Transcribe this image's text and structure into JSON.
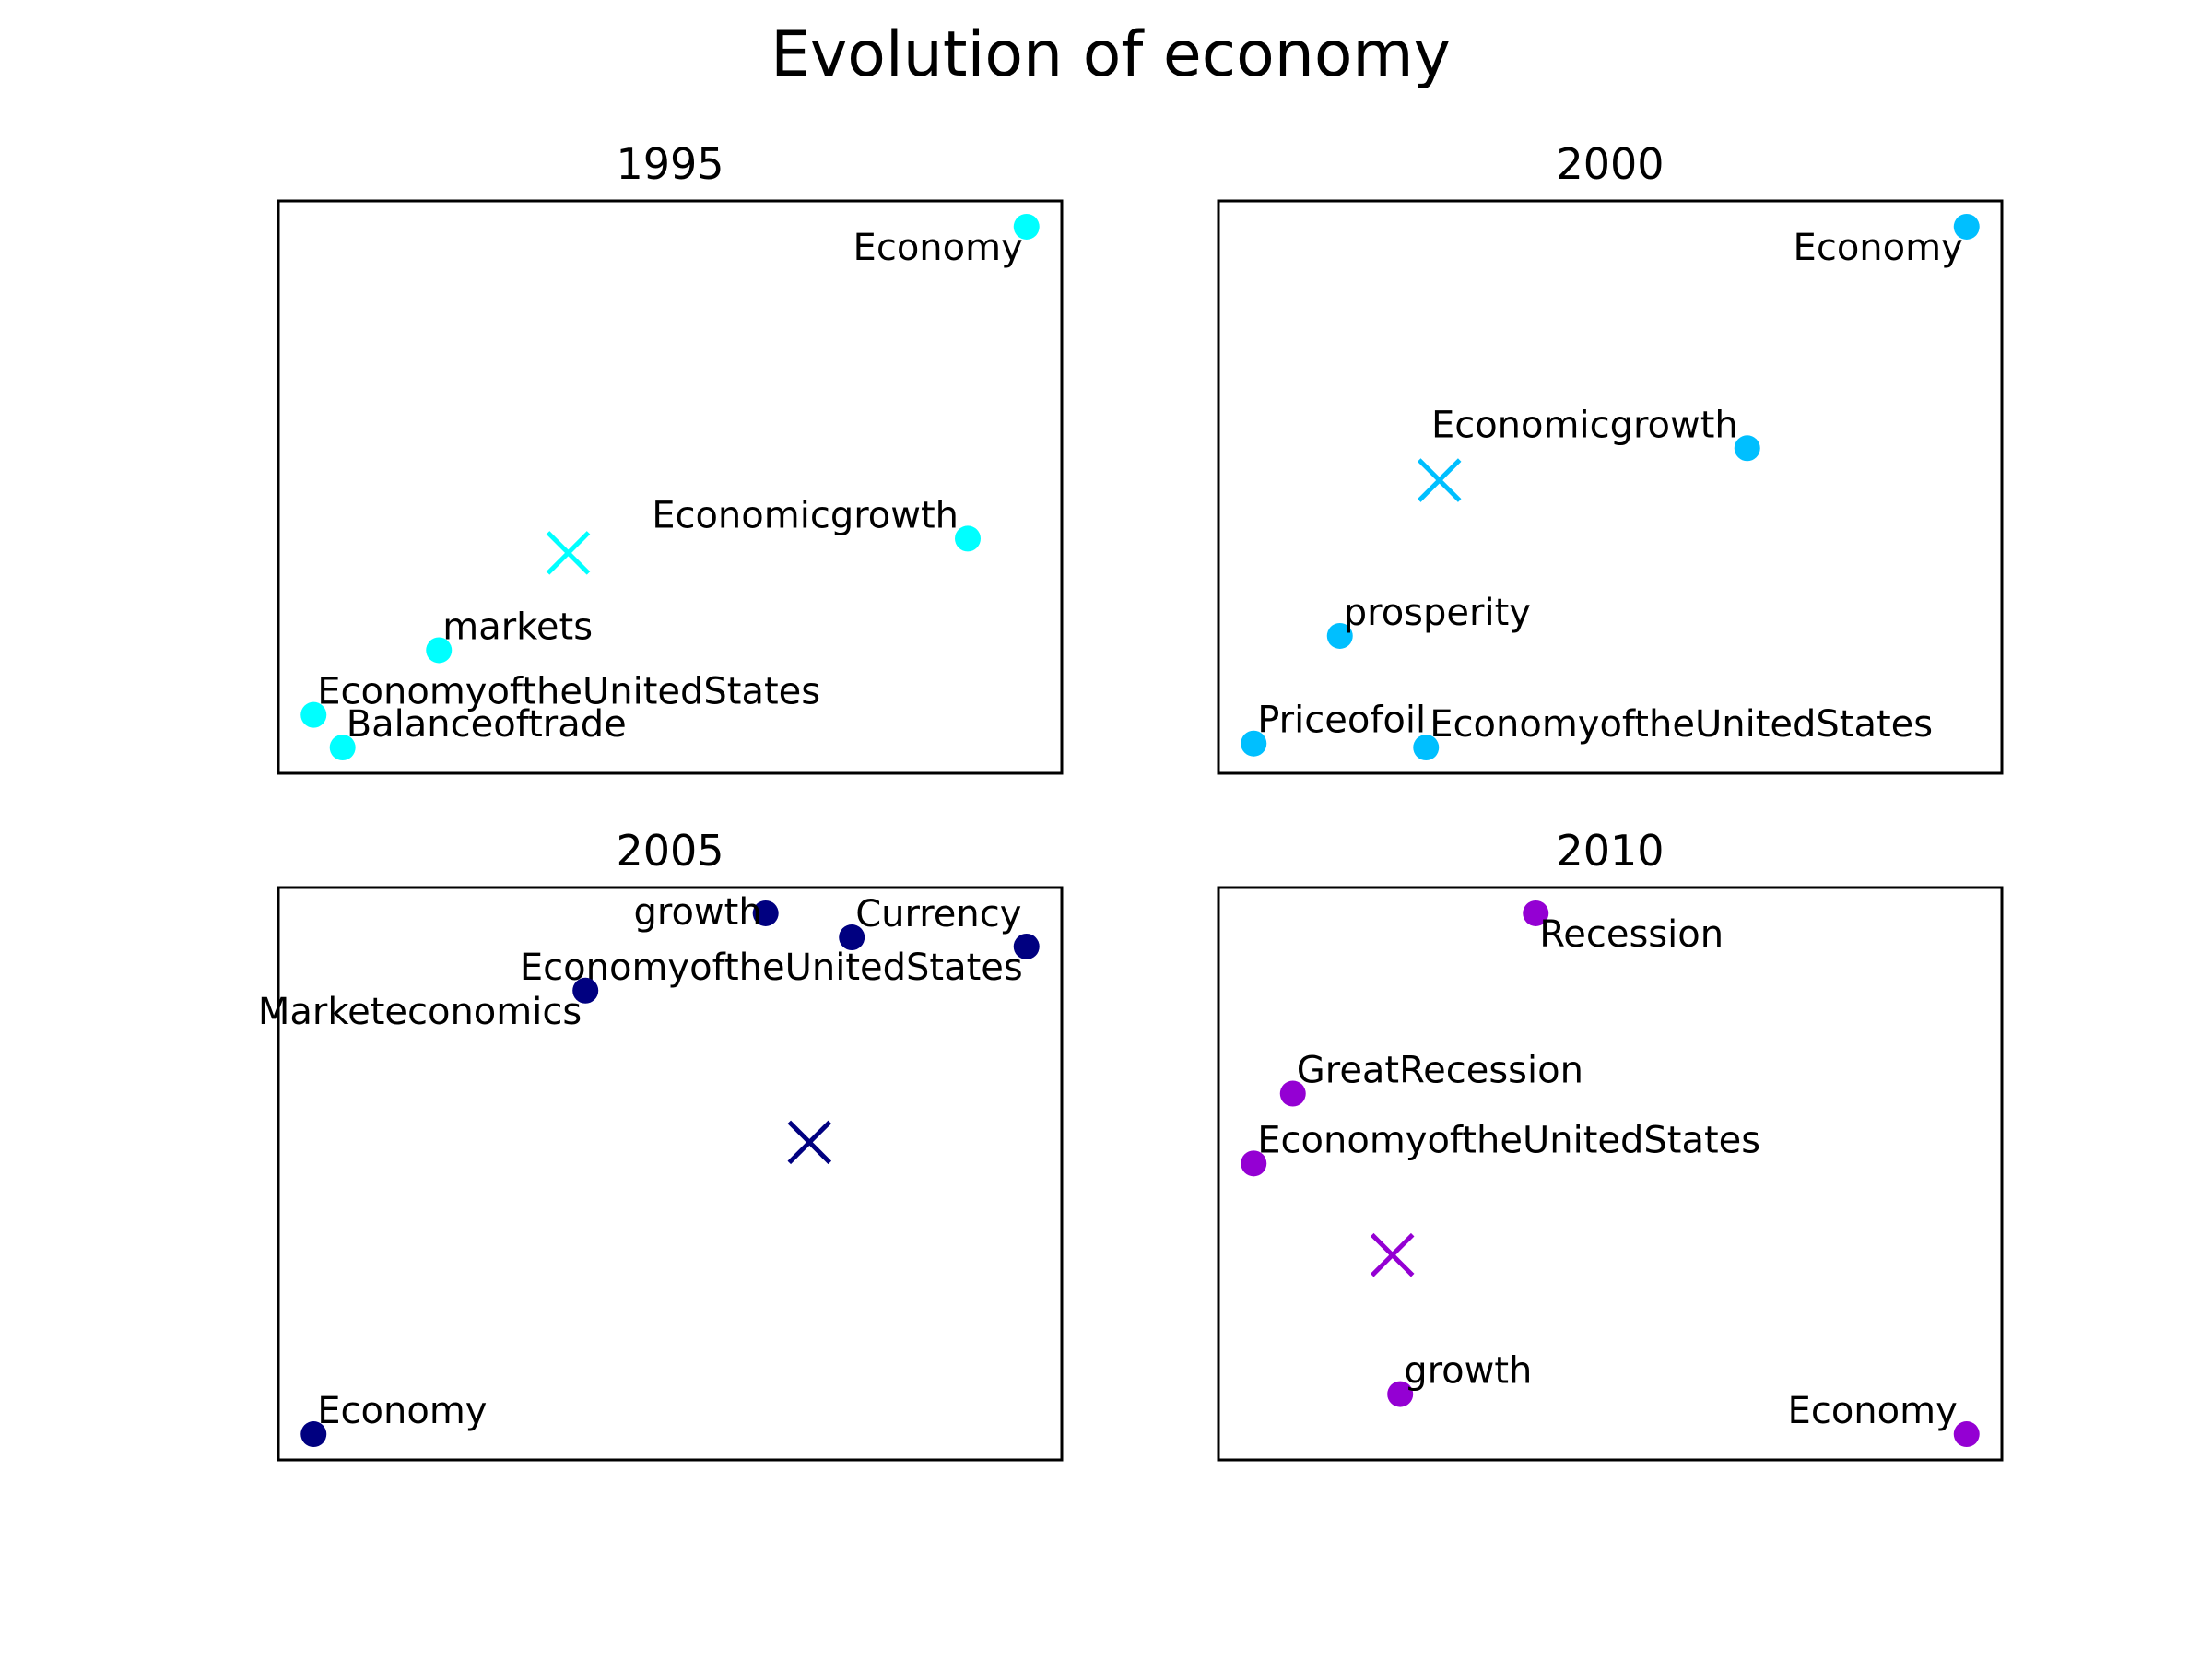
{
  "figure": {
    "title": "Evolution of economy"
  },
  "chart_data": [
    {
      "type": "scatter",
      "title": "1995",
      "color": "#00ffff",
      "axes": {
        "ticks": false,
        "grid": false
      },
      "xlim": [
        0,
        1
      ],
      "ylim": [
        0,
        1
      ],
      "points": [
        {
          "label": "Economy",
          "x": 0.955,
          "y": 0.955,
          "label_pos": "below-left"
        },
        {
          "label": "Economicgrowth",
          "x": 0.88,
          "y": 0.41,
          "label_pos": "above-left"
        },
        {
          "label": "markets",
          "x": 0.205,
          "y": 0.215,
          "label_pos": "above-right"
        },
        {
          "label": "EconomyoftheUnitedStates",
          "x": 0.045,
          "y": 0.102,
          "label_pos": "above-right"
        },
        {
          "label": "Balanceoftrade",
          "x": 0.082,
          "y": 0.045,
          "label_pos": "above-right"
        }
      ],
      "centroid": {
        "x": 0.37,
        "y": 0.385
      }
    },
    {
      "type": "scatter",
      "title": "2000",
      "color": "#00bfff",
      "axes": {
        "ticks": false,
        "grid": false
      },
      "xlim": [
        0,
        1
      ],
      "ylim": [
        0,
        1
      ],
      "points": [
        {
          "label": "Economy",
          "x": 0.955,
          "y": 0.955,
          "label_pos": "below-left"
        },
        {
          "label": "Economicgrowth",
          "x": 0.675,
          "y": 0.568,
          "label_pos": "above-left"
        },
        {
          "label": "prosperity",
          "x": 0.155,
          "y": 0.24,
          "label_pos": "above-right"
        },
        {
          "label": "EconomyoftheUnitedStates",
          "x": 0.265,
          "y": 0.045,
          "label_pos": "above-right"
        },
        {
          "label": "Priceofoil",
          "x": 0.045,
          "y": 0.052,
          "label_pos": "above-right"
        }
      ],
      "centroid": {
        "x": 0.282,
        "y": 0.512
      }
    },
    {
      "type": "scatter",
      "title": "2005",
      "color": "#000080",
      "axes": {
        "ticks": false,
        "grid": false
      },
      "xlim": [
        0,
        1
      ],
      "ylim": [
        0,
        1
      ],
      "points": [
        {
          "label": "growth",
          "x": 0.622,
          "y": 0.955,
          "label_pos": "left"
        },
        {
          "label": "Currency",
          "x": 0.732,
          "y": 0.913,
          "label_pos": "above-right"
        },
        {
          "label": "EconomyoftheUnitedStates",
          "x": 0.955,
          "y": 0.897,
          "label_pos": "below-left"
        },
        {
          "label": "Marketeconomics",
          "x": 0.392,
          "y": 0.82,
          "label_pos": "below-left"
        },
        {
          "label": "Economy",
          "x": 0.045,
          "y": 0.045,
          "label_pos": "above-right"
        }
      ],
      "centroid": {
        "x": 0.678,
        "y": 0.555
      }
    },
    {
      "type": "scatter",
      "title": "2010",
      "color": "#9400d3",
      "axes": {
        "ticks": false,
        "grid": false
      },
      "xlim": [
        0,
        1
      ],
      "ylim": [
        0,
        1
      ],
      "points": [
        {
          "label": "Recession",
          "x": 0.405,
          "y": 0.955,
          "label_pos": "below-right"
        },
        {
          "label": "GreatRecession",
          "x": 0.095,
          "y": 0.64,
          "label_pos": "above-right"
        },
        {
          "label": "EconomyoftheUnitedStates",
          "x": 0.045,
          "y": 0.518,
          "label_pos": "above-right"
        },
        {
          "label": "growth",
          "x": 0.232,
          "y": 0.115,
          "label_pos": "above-right"
        },
        {
          "label": "Economy",
          "x": 0.955,
          "y": 0.045,
          "label_pos": "above-left"
        }
      ],
      "centroid": {
        "x": 0.222,
        "y": 0.358
      }
    }
  ]
}
